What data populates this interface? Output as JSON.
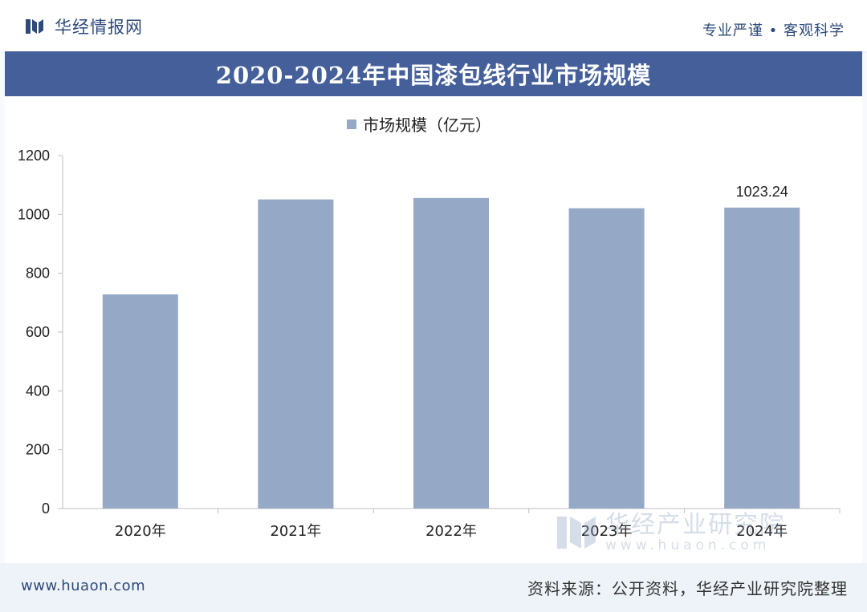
{
  "header": {
    "brand_name": "华经情报网",
    "slogan": "专业严谨 • 客观科学"
  },
  "chart_data": {
    "type": "bar",
    "title": "2020-2024年中国漆包线行业市场规模",
    "categories": [
      "2020年",
      "2021年",
      "2022年",
      "2023年",
      "2024年"
    ],
    "series": [
      {
        "name": "市场规模（亿元）",
        "values": [
          728,
          1051,
          1056,
          1021,
          1023.24
        ],
        "data_labels": [
          null,
          null,
          null,
          null,
          "1023.24"
        ],
        "color": "#95a8c6"
      }
    ],
    "ylim": [
      0,
      1200
    ],
    "yticks": [
      0,
      200,
      400,
      600,
      800,
      1000,
      1200
    ],
    "xlabel": "",
    "ylabel": "",
    "legend": "top-center",
    "grid": false
  },
  "footer": {
    "site_url": "www.huaon.com",
    "source": "资料来源：公开资料，华经产业研究院整理"
  },
  "watermark": {
    "name": "华经产业研究院",
    "url": "www.huaon.com"
  },
  "colors": {
    "title_bar": "#445f99",
    "bar": "#95a8c6",
    "brand": "#2e4a7a"
  }
}
